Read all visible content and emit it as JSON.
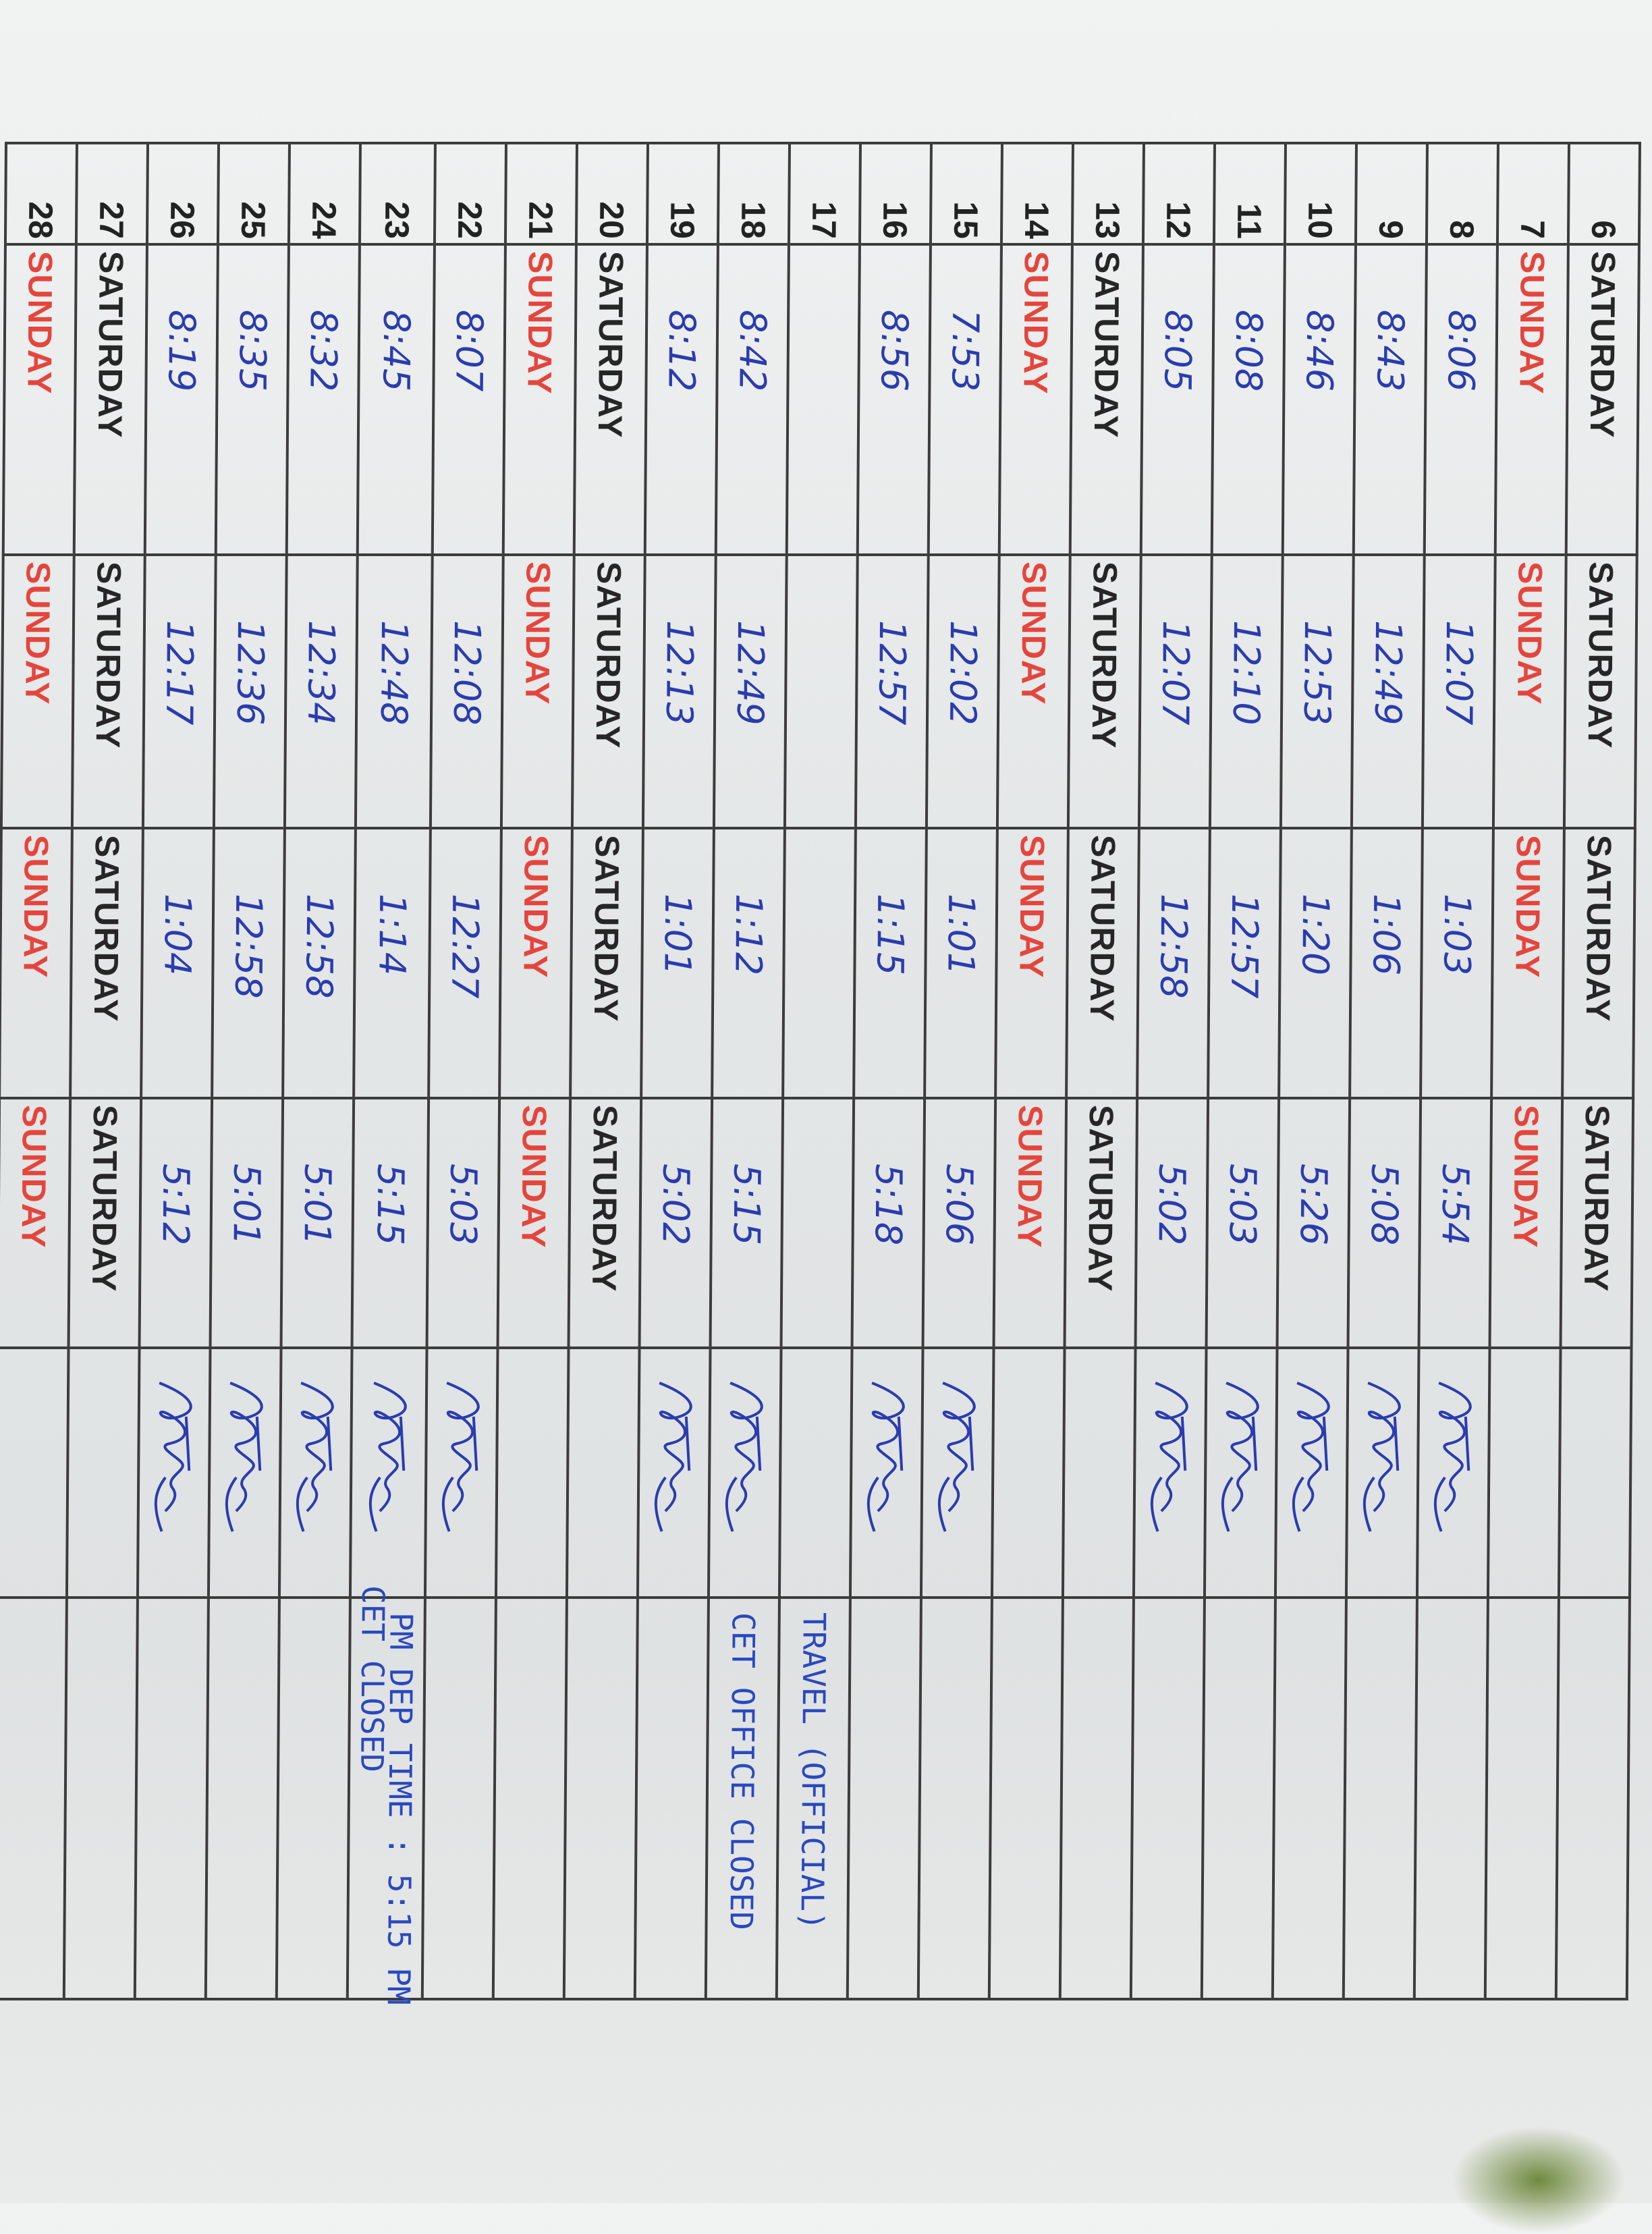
{
  "sheet": {
    "ink_color": "#2a3cb0",
    "sunday_color": "#e5453d",
    "saturday_color": "#262626",
    "rows": [
      {
        "day": "6",
        "weekday": "SATURDAY"
      },
      {
        "day": "7",
        "weekday": "SUNDAY"
      },
      {
        "day": "8",
        "am_in": "8:06",
        "am_out": "12:07",
        "pm_in": "1:03",
        "pm_out": "5:54",
        "signed": true
      },
      {
        "day": "9",
        "am_in": "8:43",
        "am_out": "12:49",
        "pm_in": "1:06",
        "pm_out": "5:08",
        "signed": true
      },
      {
        "day": "10",
        "am_in": "8:46",
        "am_out": "12:53",
        "pm_in": "1:20",
        "pm_out": "5:26",
        "signed": true
      },
      {
        "day": "11",
        "am_in": "8:08",
        "am_out": "12:10",
        "pm_in": "12:57",
        "pm_out": "5:03",
        "signed": true
      },
      {
        "day": "12",
        "am_in": "8:05",
        "am_out": "12:07",
        "pm_in": "12:58",
        "pm_out": "5:02",
        "signed": true
      },
      {
        "day": "13",
        "weekday": "SATURDAY"
      },
      {
        "day": "14",
        "weekday": "SUNDAY"
      },
      {
        "day": "15",
        "am_in": "7:53",
        "am_out": "12:02",
        "pm_in": "1:01",
        "pm_out": "5:06",
        "signed": true
      },
      {
        "day": "16",
        "am_in": "8:56",
        "am_out": "12:57",
        "pm_in": "1:15",
        "pm_out": "5:18",
        "signed": true
      },
      {
        "day": "17",
        "remarks": "TRAVEL (OFFICIAL)"
      },
      {
        "day": "18",
        "am_in": "8:42",
        "am_out": "12:49",
        "pm_in": "1:12",
        "pm_out": "5:15",
        "signed": true,
        "remarks": "CET OFFICE CLOSED"
      },
      {
        "day": "19",
        "am_in": "8:12",
        "am_out": "12:13",
        "pm_in": "1:01",
        "pm_out": "5:02",
        "signed": true
      },
      {
        "day": "20",
        "weekday": "SATURDAY"
      },
      {
        "day": "21",
        "weekday": "SUNDAY"
      },
      {
        "day": "22",
        "am_in": "8:07",
        "am_out": "12:08",
        "pm_in": "12:27",
        "pm_out": "5:03",
        "signed": true
      },
      {
        "day": "23",
        "am_in": "8:45",
        "am_out": "12:48",
        "pm_in": "1:14",
        "pm_out": "5:15",
        "signed": true,
        "remarks": "PM DEP TIME : 5:15 PM",
        "remarks_2": "CET CLOSED"
      },
      {
        "day": "24",
        "am_in": "8:32",
        "am_out": "12:34",
        "pm_in": "12:58",
        "pm_out": "5:01",
        "signed": true
      },
      {
        "day": "25",
        "am_in": "8:35",
        "am_out": "12:36",
        "pm_in": "12:58",
        "pm_out": "5:01",
        "signed": true
      },
      {
        "day": "26",
        "am_in": "8:19",
        "am_out": "12:17",
        "pm_in": "1:04",
        "pm_out": "5:12",
        "signed": true
      },
      {
        "day": "27",
        "weekday": "SATURDAY"
      },
      {
        "day": "28",
        "weekday": "SUNDAY"
      }
    ]
  }
}
